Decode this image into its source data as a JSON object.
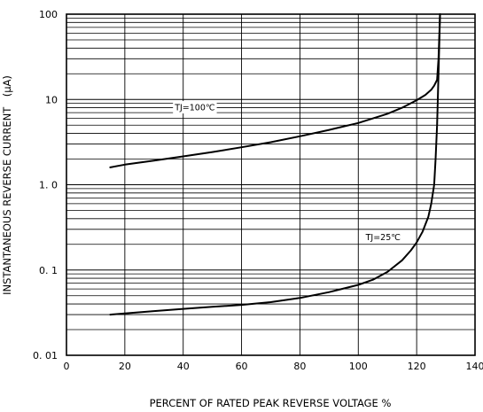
{
  "chart_data": {
    "type": "line",
    "xlabel": "PERCENT OF RATED PEAK REVERSE VOLTAGE %",
    "ylabel": "INSTANTANEOUS REVERSE CURRENT　(μA)",
    "xlim": [
      0,
      140
    ],
    "ylim": [
      0.01,
      100
    ],
    "yscale": "log",
    "grid": true,
    "x_ticks": [
      0,
      20,
      40,
      60,
      80,
      100,
      120,
      140
    ],
    "x_tick_labels": [
      "0",
      "20",
      "40",
      "60",
      "80",
      "100",
      "120",
      "140"
    ],
    "y_ticks": [
      0.01,
      0.1,
      1,
      10,
      100
    ],
    "y_tick_labels": [
      "0. 01",
      "0. 1",
      "1. 0",
      "10",
      "100"
    ],
    "series": [
      {
        "name": "TJ=100℃",
        "x": [
          15,
          20,
          30,
          40,
          50,
          60,
          70,
          80,
          90,
          100,
          110,
          115,
          120,
          123,
          125,
          126,
          127,
          127.5,
          127.8,
          128
        ],
        "y": [
          1.6,
          1.72,
          1.92,
          2.15,
          2.42,
          2.75,
          3.15,
          3.7,
          4.4,
          5.3,
          6.8,
          8.0,
          9.8,
          11.3,
          13.0,
          14.5,
          17,
          30,
          60,
          100
        ]
      },
      {
        "name": "TJ=25℃",
        "x": [
          15,
          20,
          30,
          40,
          50,
          60,
          70,
          80,
          90,
          100,
          105,
          110,
          115,
          118,
          120,
          122,
          124,
          125,
          126,
          126.5,
          127,
          127.5,
          128
        ],
        "y": [
          0.03,
          0.031,
          0.033,
          0.035,
          0.037,
          0.039,
          0.042,
          0.047,
          0.055,
          0.067,
          0.077,
          0.095,
          0.13,
          0.17,
          0.21,
          0.28,
          0.42,
          0.6,
          1.0,
          2.0,
          5.0,
          20,
          100
        ]
      }
    ],
    "annotations": [
      {
        "text": "TJ=100℃",
        "x": 44,
        "y": 8.1
      },
      {
        "text": "TJ=25℃",
        "x": 108.5,
        "y": 0.245
      }
    ]
  }
}
